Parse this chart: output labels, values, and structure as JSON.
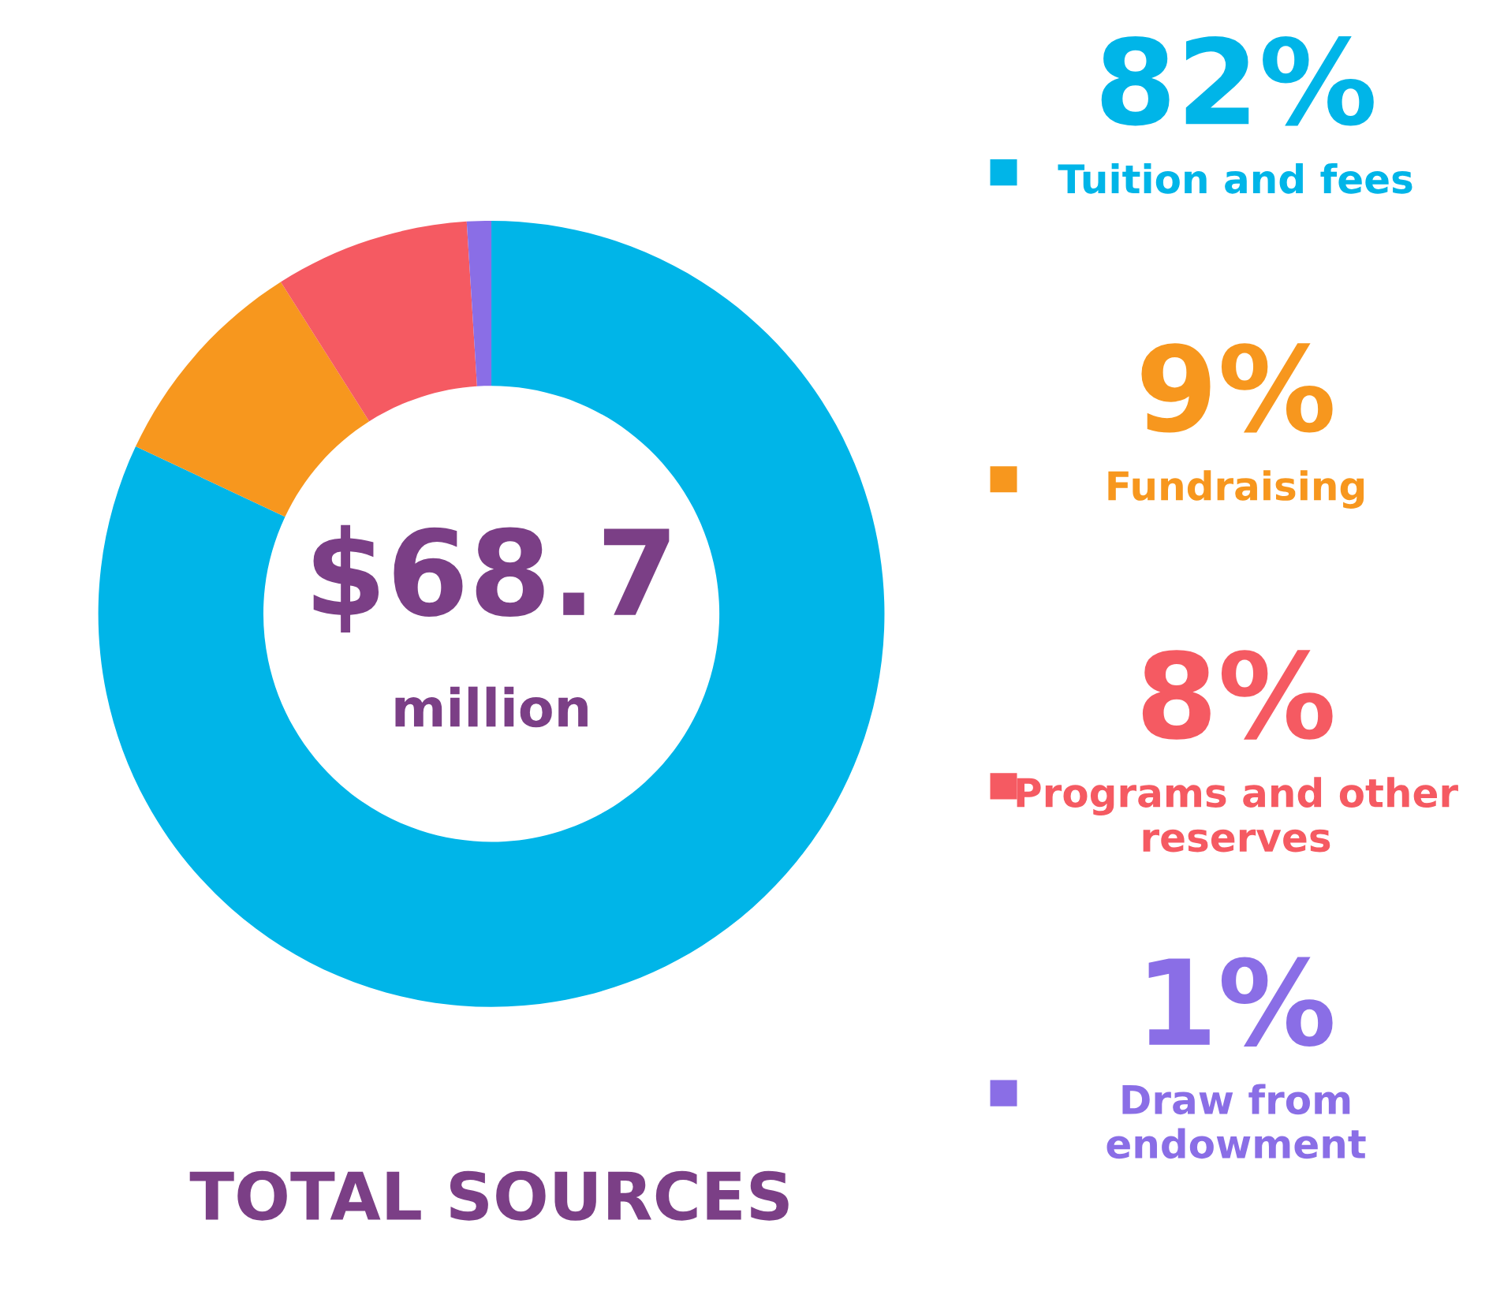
{
  "chart_data": {
    "type": "donut",
    "title": "TOTAL SOURCES",
    "categories": [
      "Tuition and fees",
      "Fundraising",
      "Programs and other reserves",
      "Draw from endowment"
    ],
    "values": [
      82,
      9,
      8,
      1
    ],
    "value_labels": [
      "82%",
      "9%",
      "8%",
      "1%"
    ],
    "colors": [
      "#00b5e8",
      "#f7971e",
      "#f55a62",
      "#8a6ee6"
    ],
    "annotations": [
      "$68.7",
      "million"
    ],
    "legend": "right"
  }
}
